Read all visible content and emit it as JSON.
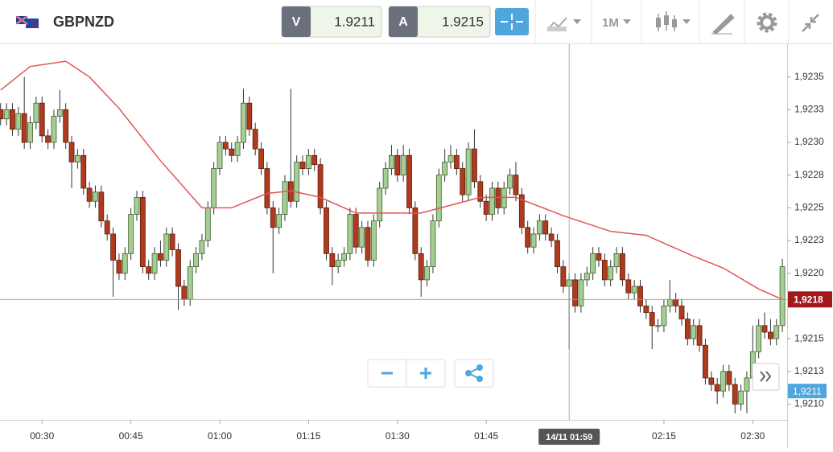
{
  "header": {
    "symbol": "GBPNZD",
    "sell_label": "V",
    "sell_price": "1.9211",
    "buy_label": "A",
    "buy_price": "1.9215",
    "timeframe": "1M"
  },
  "chart_data": {
    "type": "candlestick",
    "x": [
      23,
      24,
      25,
      26,
      27,
      28,
      29,
      30,
      31,
      32,
      33,
      34,
      35,
      36,
      37,
      38,
      39,
      40,
      41,
      42,
      43,
      44,
      45,
      46,
      47,
      48,
      49,
      50,
      51,
      52,
      53,
      54,
      55,
      56,
      57,
      58,
      59,
      60,
      61,
      62,
      63,
      64,
      65,
      66,
      67,
      68,
      69,
      70,
      71,
      72,
      73,
      74,
      75,
      76,
      77,
      78,
      79,
      80,
      81,
      82,
      83,
      84,
      85,
      86,
      87,
      88,
      89,
      90,
      91,
      92,
      93,
      94,
      95,
      96,
      97,
      98,
      99,
      100,
      101,
      102,
      103,
      104,
      105,
      106,
      107,
      108,
      109,
      110,
      111,
      112,
      113,
      114,
      115,
      116,
      117,
      118,
      119,
      120,
      121,
      122,
      123,
      124,
      125,
      126,
      127,
      128,
      129,
      130,
      131,
      132,
      133,
      134,
      135,
      136,
      137,
      138,
      139,
      140,
      141,
      142,
      143,
      144,
      145,
      146,
      147,
      148,
      149,
      150,
      151,
      152,
      153,
      154,
      155
    ],
    "open": [
      1.92325,
      1.92318,
      1.92325,
      1.9231,
      1.92322,
      1.923,
      1.92315,
      1.9233,
      1.92305,
      1.923,
      1.9232,
      1.92325,
      1.923,
      1.92285,
      1.9229,
      1.92265,
      1.92255,
      1.92262,
      1.9224,
      1.9223,
      1.9221,
      1.922,
      1.92215,
      1.92245,
      1.92258,
      1.92205,
      1.922,
      1.92215,
      1.9221,
      1.9223,
      1.92218,
      1.9219,
      1.9218,
      1.92205,
      1.92215,
      1.92225,
      1.9225,
      1.9228,
      1.923,
      1.92295,
      1.9229,
      1.923,
      1.9233,
      1.9231,
      1.92295,
      1.9228,
      1.9225,
      1.92235,
      1.92245,
      1.9227,
      1.92255,
      1.92285,
      1.9228,
      1.9229,
      1.92283,
      1.9225,
      1.92215,
      1.92205,
      1.9221,
      1.92215,
      1.92245,
      1.9222,
      1.92235,
      1.9221,
      1.9224,
      1.92265,
      1.9228,
      1.9229,
      1.92275,
      1.9229,
      1.9225,
      1.92215,
      1.92195,
      1.92205,
      1.9224,
      1.92275,
      1.92285,
      1.9229,
      1.9228,
      1.9226,
      1.92295,
      1.9227,
      1.92255,
      1.92245,
      1.92265,
      1.9225,
      1.92265,
      1.92275,
      1.9226,
      1.92235,
      1.9222,
      1.9223,
      1.9224,
      1.9223,
      1.92225,
      1.92205,
      1.9219,
      1.92195,
      1.92175,
      1.92195,
      1.922,
      1.92215,
      1.9221,
      1.92195,
      1.92205,
      1.92215,
      1.92195,
      1.92185,
      1.9219,
      1.92175,
      1.9217,
      1.9216,
      1.9216,
      1.92175,
      1.9218,
      1.92175,
      1.92165,
      1.9215,
      1.9216,
      1.92145,
      1.9212,
      1.92115,
      1.9211,
      1.92125,
      1.92115,
      1.921,
      1.9211,
      1.9212,
      1.9214,
      1.9216,
      1.92155,
      1.9215,
      1.9216
    ],
    "high": [
      1.9233,
      1.9233,
      1.9233,
      1.92327,
      1.9235,
      1.9232,
      1.92335,
      1.92335,
      1.9231,
      1.92325,
      1.9234,
      1.9233,
      1.92305,
      1.92295,
      1.92295,
      1.9227,
      1.92267,
      1.92267,
      1.92245,
      1.92235,
      1.92215,
      1.9222,
      1.9225,
      1.92263,
      1.92263,
      1.9221,
      1.9222,
      1.92225,
      1.92235,
      1.92235,
      1.92223,
      1.92195,
      1.9221,
      1.9222,
      1.9223,
      1.92255,
      1.92285,
      1.92305,
      1.92305,
      1.923,
      1.92305,
      1.92341,
      1.92335,
      1.92315,
      1.923,
      1.92285,
      1.92255,
      1.9225,
      1.92275,
      1.92341,
      1.9229,
      1.9229,
      1.92295,
      1.92295,
      1.92288,
      1.92255,
      1.9222,
      1.92215,
      1.9222,
      1.9225,
      1.9225,
      1.9224,
      1.9224,
      1.92245,
      1.9227,
      1.92285,
      1.92298,
      1.92295,
      1.92298,
      1.92295,
      1.92255,
      1.9222,
      1.9221,
      1.92245,
      1.9228,
      1.92295,
      1.92298,
      1.92295,
      1.92285,
      1.923,
      1.9231,
      1.92275,
      1.9226,
      1.9227,
      1.9227,
      1.9227,
      1.9228,
      1.92285,
      1.92265,
      1.9224,
      1.92235,
      1.92245,
      1.92245,
      1.92235,
      1.9223,
      1.9221,
      1.922,
      1.922,
      1.922,
      1.92205,
      1.9222,
      1.9222,
      1.92215,
      1.9221,
      1.9222,
      1.9222,
      1.922,
      1.92195,
      1.92195,
      1.9218,
      1.92175,
      1.92165,
      1.9218,
      1.92195,
      1.92185,
      1.9218,
      1.9217,
      1.92165,
      1.92165,
      1.9215,
      1.92125,
      1.9212,
      1.9213,
      1.9213,
      1.9212,
      1.92115,
      1.92125,
      1.9216,
      1.92165,
      1.9217,
      1.92165,
      1.92165,
      1.92211
    ],
    "low": [
      1.92313,
      1.92313,
      1.92305,
      1.92305,
      1.92295,
      1.92295,
      1.9231,
      1.923,
      1.92295,
      1.92295,
      1.92315,
      1.92295,
      1.92265,
      1.9228,
      1.9226,
      1.9225,
      1.9225,
      1.92235,
      1.92225,
      1.92182,
      1.92195,
      1.92195,
      1.9221,
      1.9224,
      1.922,
      1.92195,
      1.92195,
      1.92205,
      1.92205,
      1.92213,
      1.92172,
      1.92175,
      1.92175,
      1.922,
      1.9221,
      1.9222,
      1.92245,
      1.92275,
      1.9229,
      1.92285,
      1.92285,
      1.92295,
      1.92305,
      1.9229,
      1.92275,
      1.92245,
      1.922,
      1.9223,
      1.9224,
      1.9225,
      1.9225,
      1.92275,
      1.92275,
      1.92278,
      1.92245,
      1.9221,
      1.92191,
      1.922,
      1.92205,
      1.9221,
      1.92215,
      1.92215,
      1.92205,
      1.92205,
      1.92235,
      1.9226,
      1.92275,
      1.9227,
      1.9227,
      1.92245,
      1.9221,
      1.92182,
      1.9219,
      1.922,
      1.92235,
      1.9227,
      1.9228,
      1.92275,
      1.92255,
      1.92255,
      1.92265,
      1.9225,
      1.9224,
      1.9224,
      1.92245,
      1.92245,
      1.9226,
      1.92255,
      1.9223,
      1.92215,
      1.92215,
      1.92225,
      1.92225,
      1.9222,
      1.922,
      1.92185,
      1.92142,
      1.9217,
      1.9217,
      1.9219,
      1.92195,
      1.92205,
      1.9219,
      1.9219,
      1.922,
      1.9219,
      1.9218,
      1.9218,
      1.9217,
      1.92165,
      1.92142,
      1.92155,
      1.92155,
      1.9217,
      1.9217,
      1.9216,
      1.92145,
      1.92145,
      1.9214,
      1.92115,
      1.9211,
      1.921,
      1.92105,
      1.9211,
      1.92093,
      1.92095,
      1.92093,
      1.92115,
      1.92135,
      1.9215,
      1.92145,
      1.92145,
      1.92155
    ],
    "close": [
      1.92318,
      1.92325,
      1.9231,
      1.92322,
      1.923,
      1.92315,
      1.9233,
      1.92305,
      1.923,
      1.9232,
      1.92325,
      1.923,
      1.92285,
      1.9229,
      1.92265,
      1.92255,
      1.92262,
      1.9224,
      1.9223,
      1.9221,
      1.922,
      1.92215,
      1.92245,
      1.92258,
      1.92205,
      1.922,
      1.92215,
      1.9221,
      1.9223,
      1.92218,
      1.9219,
      1.9218,
      1.92205,
      1.92215,
      1.92225,
      1.9225,
      1.9228,
      1.923,
      1.92295,
      1.9229,
      1.923,
      1.9233,
      1.9231,
      1.92295,
      1.9228,
      1.9225,
      1.92235,
      1.92245,
      1.9227,
      1.92255,
      1.92285,
      1.9228,
      1.9229,
      1.92283,
      1.9225,
      1.92215,
      1.92205,
      1.9221,
      1.92215,
      1.92245,
      1.9222,
      1.92235,
      1.9221,
      1.9224,
      1.92265,
      1.9228,
      1.9229,
      1.92275,
      1.9229,
      1.9225,
      1.92215,
      1.92195,
      1.92205,
      1.9224,
      1.92275,
      1.92285,
      1.9229,
      1.9228,
      1.9226,
      1.92295,
      1.9227,
      1.92255,
      1.92245,
      1.92265,
      1.9225,
      1.92265,
      1.92275,
      1.9226,
      1.92235,
      1.9222,
      1.9223,
      1.9224,
      1.9223,
      1.92225,
      1.92205,
      1.9219,
      1.92195,
      1.92175,
      1.92195,
      1.922,
      1.92215,
      1.9221,
      1.92195,
      1.92205,
      1.92215,
      1.92195,
      1.92185,
      1.9219,
      1.92175,
      1.9217,
      1.9216,
      1.9216,
      1.92175,
      1.9218,
      1.92175,
      1.92165,
      1.9215,
      1.9216,
      1.92145,
      1.9212,
      1.92115,
      1.9211,
      1.92125,
      1.92115,
      1.921,
      1.9211,
      1.9212,
      1.9214,
      1.9216,
      1.92155,
      1.9215,
      1.9216,
      1.92205
    ],
    "up_color": "#a5cf92",
    "down_color": "#b03a1e",
    "wick_color": "#333333",
    "overlay": {
      "color": "#e05555",
      "x": [
        23,
        28,
        34,
        38,
        43,
        50,
        57,
        62,
        68,
        72,
        77,
        83,
        88,
        94,
        99,
        104,
        110,
        118,
        126,
        132,
        140,
        145,
        151,
        155
      ],
      "values": [
        1.9234,
        1.92358,
        1.92362,
        1.9235,
        1.92326,
        1.92286,
        1.9225,
        1.9225,
        1.92261,
        1.92263,
        1.92258,
        1.92246,
        1.92246,
        1.92246,
        1.92252,
        1.92258,
        1.92258,
        1.92244,
        1.92232,
        1.92229,
        1.92213,
        1.92204,
        1.92188,
        1.9218
      ]
    },
    "xlim": [
      22.9,
      155.8
    ],
    "ylim": [
      1.92088,
      1.92375
    ],
    "xticks": [
      {
        "value": 30,
        "label": "00:30"
      },
      {
        "value": 45,
        "label": "00:45"
      },
      {
        "value": 60,
        "label": "01:00"
      },
      {
        "value": 75,
        "label": "01:15"
      },
      {
        "value": 90,
        "label": "01:30"
      },
      {
        "value": 105,
        "label": "01:45"
      },
      {
        "value": 135,
        "label": "02:15"
      },
      {
        "value": 150,
        "label": "02:30"
      }
    ],
    "yticks": [
      {
        "value": 1.9235,
        "label": "1,9235"
      },
      {
        "value": 1.92325,
        "label": "1,9233"
      },
      {
        "value": 1.923,
        "label": "1,9230"
      },
      {
        "value": 1.92275,
        "label": "1,9228"
      },
      {
        "value": 1.9225,
        "label": "1,9225"
      },
      {
        "value": 1.92225,
        "label": "1,9223"
      },
      {
        "value": 1.922,
        "label": "1,9220"
      },
      {
        "value": 1.9215,
        "label": "1,9215"
      },
      {
        "value": 1.92125,
        "label": "1,9213"
      },
      {
        "value": 1.921,
        "label": "1,9210"
      }
    ],
    "grid": false,
    "current_price": {
      "value": 1.9218,
      "label": "1,9218",
      "color": "#a3191b"
    },
    "bid_marker": {
      "value": 1.9211,
      "label": "1,9211",
      "color": "#4ea6dc"
    },
    "crosshair": {
      "value": 119,
      "label": "14/11 01:59"
    }
  }
}
